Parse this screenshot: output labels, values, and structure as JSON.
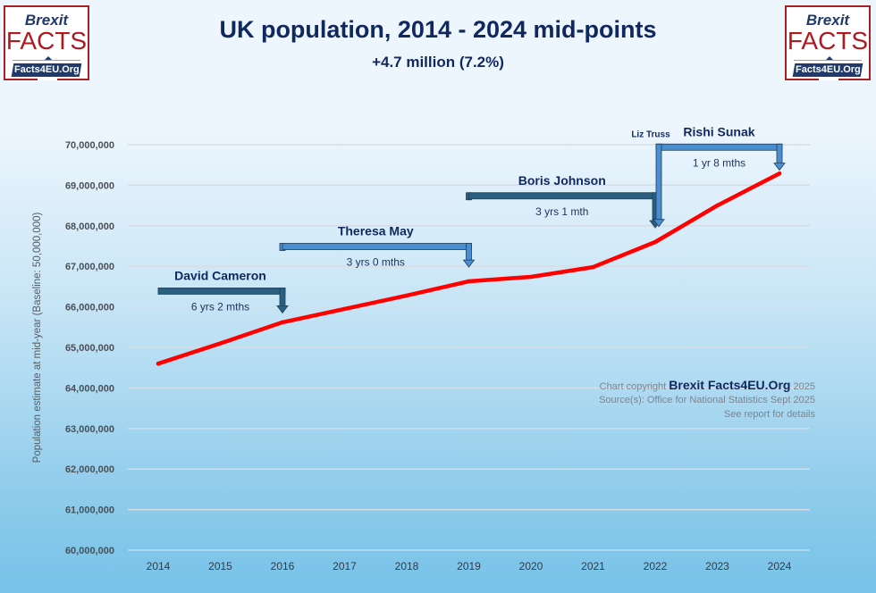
{
  "header": {
    "title": "UK population, 2014 - 2024 mid-points",
    "subtitle": "+4.7 million (7.2%)"
  },
  "logo": {
    "line1": "Brexit",
    "line2": "FACTS",
    "band": "Facts4EU.Org"
  },
  "credits": {
    "copyright_prefix": "Chart copyright",
    "copyright_brand": "Brexit Facts4EU.Org",
    "copyright_year": "2025",
    "source": "Source(s): Office for National Statistics Sept 2025",
    "details": "See report for details"
  },
  "colors": {
    "line": "#ff0000",
    "title": "#10285e",
    "logo_red": "#b0191f",
    "logo_blue": "#1f3a6b",
    "bracket_dark": "#2a5f80",
    "bracket_light": "#4a8ed0"
  },
  "chart_data": {
    "type": "line",
    "title": "UK population, 2014 - 2024 mid-points",
    "subtitle": "+4.7 million (7.2%)",
    "xlabel": "",
    "ylabel": "Population estimate at mid-year (Baseline: 50,000,000)",
    "ylim": [
      60000000,
      70000000
    ],
    "yticks": [
      60000000,
      61000000,
      62000000,
      63000000,
      64000000,
      65000000,
      66000000,
      67000000,
      68000000,
      69000000,
      70000000
    ],
    "ytick_labels": [
      "60,000,000",
      "61,000,000",
      "62,000,000",
      "63,000,000",
      "64,000,000",
      "65,000,000",
      "66,000,000",
      "67,000,000",
      "68,000,000",
      "69,000,000",
      "70,000,000"
    ],
    "grid": true,
    "legend": "none",
    "categories": [
      "2014",
      "2015",
      "2016",
      "2017",
      "2018",
      "2019",
      "2020",
      "2021",
      "2022",
      "2023",
      "2024"
    ],
    "series": [
      {
        "name": "UK population",
        "values": [
          64600000,
          65100000,
          65620000,
          65950000,
          66280000,
          66630000,
          66740000,
          66980000,
          67600000,
          68500000,
          69290000
        ]
      }
    ],
    "annotations": [
      {
        "name": "David Cameron",
        "duration": "6 yrs 2 mths",
        "from": "2014",
        "to": "2016",
        "level": 66400000,
        "style": "dark",
        "small": false
      },
      {
        "name": "Theresa May",
        "duration": "3 yrs 0 mths",
        "from": "2016",
        "to": "2019",
        "level": 67500000,
        "style": "light",
        "small": false
      },
      {
        "name": "Boris Johnson",
        "duration": "3 yrs 1 mth",
        "from": "2019",
        "to": "2022",
        "level": 68750000,
        "style": "dark",
        "small": false
      },
      {
        "name": "Liz Truss",
        "duration": "",
        "from": "2022",
        "to": "2022",
        "level": 69950000,
        "style": "light",
        "small": true
      },
      {
        "name": "Rishi Sunak",
        "duration": "1 yr 8 mths",
        "from": "2022",
        "to": "2024",
        "level": 69950000,
        "style": "light",
        "small": false
      }
    ]
  }
}
